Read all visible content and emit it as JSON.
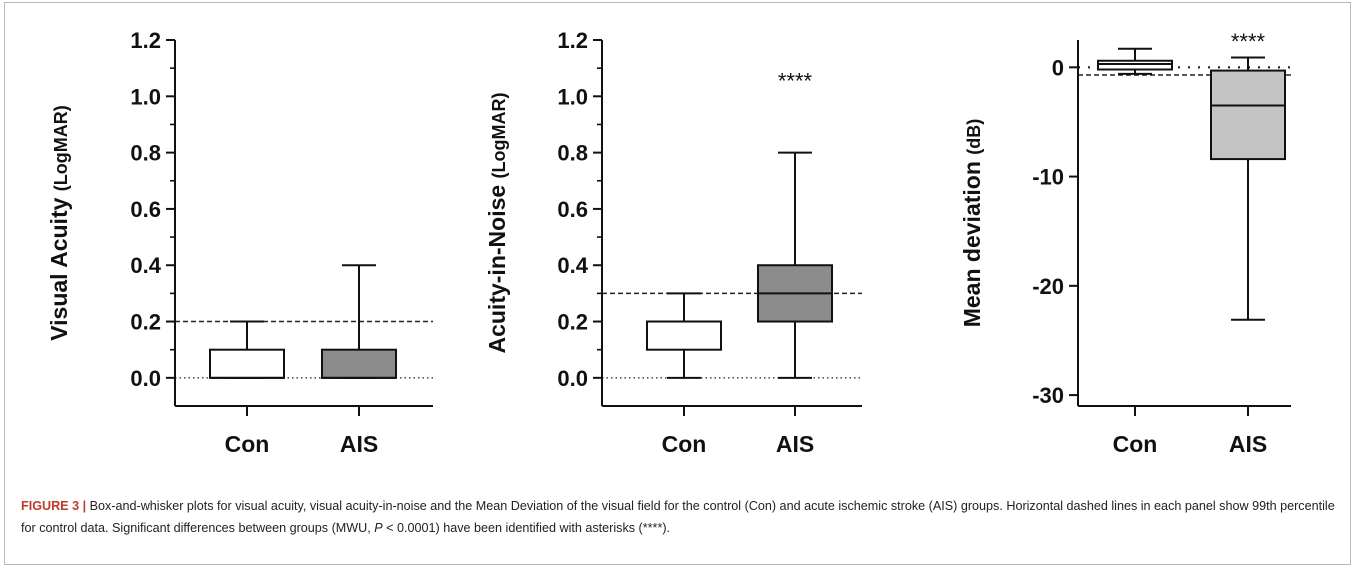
{
  "chart_data": [
    {
      "type": "box",
      "ylabel": "Visual Acuity",
      "ylabel_unit": "(LogMAR)",
      "ylim": [
        -0.1,
        1.2
      ],
      "yticks": [
        0.0,
        0.2,
        0.4,
        0.6,
        0.8,
        1.0,
        1.2
      ],
      "ytick_labels": [
        "0.0",
        "0.2",
        "0.4",
        "0.6",
        "0.8",
        "1.0",
        "1.2"
      ],
      "minor_ticks": true,
      "categories": [
        "Con",
        "AIS"
      ],
      "boxes": [
        {
          "name": "Con",
          "min": 0.0,
          "q1": 0.0,
          "median": 0.0,
          "q3": 0.1,
          "max": 0.2,
          "fill": "#ffffff"
        },
        {
          "name": "AIS",
          "min": 0.0,
          "q1": 0.0,
          "median": 0.0,
          "q3": 0.1,
          "max": 0.4,
          "fill": "#8c8c8c"
        }
      ],
      "reference_dashed": 0.2,
      "reference_dotted": 0.0,
      "significance": ""
    },
    {
      "type": "box",
      "ylabel": "Acuity-in-Noise",
      "ylabel_unit": "(LogMAR)",
      "ylim": [
        -0.1,
        1.2
      ],
      "yticks": [
        0.0,
        0.2,
        0.4,
        0.6,
        0.8,
        1.0,
        1.2
      ],
      "ytick_labels": [
        "0.0",
        "0.2",
        "0.4",
        "0.6",
        "0.8",
        "1.0",
        "1.2"
      ],
      "minor_ticks": true,
      "categories": [
        "Con",
        "AIS"
      ],
      "boxes": [
        {
          "name": "Con",
          "min": 0.0,
          "q1": 0.1,
          "median": 0.2,
          "q3": 0.2,
          "max": 0.3,
          "fill": "#ffffff"
        },
        {
          "name": "AIS",
          "min": 0.0,
          "q1": 0.2,
          "median": 0.3,
          "q3": 0.4,
          "max": 0.8,
          "fill": "#8c8c8c"
        }
      ],
      "reference_dashed": 0.3,
      "reference_dotted": 0.0,
      "significance": "****"
    },
    {
      "type": "box",
      "ylabel": "Mean deviation",
      "ylabel_unit": "(dB)",
      "ylim": [
        -31,
        2.5
      ],
      "yticks": [
        -30,
        -20,
        -10,
        0
      ],
      "ytick_labels": [
        "-30",
        "-20",
        "-10",
        "0"
      ],
      "minor_ticks": false,
      "categories": [
        "Con",
        "AIS"
      ],
      "boxes": [
        {
          "name": "Con",
          "min": -0.6,
          "q1": -0.2,
          "median": 0.3,
          "q3": 0.6,
          "max": 1.7,
          "fill": "#ffffff"
        },
        {
          "name": "AIS",
          "min": -23.1,
          "q1": -8.4,
          "median": -3.5,
          "q3": -0.3,
          "max": 0.9,
          "fill": "#c4c4c4"
        }
      ],
      "reference_dashed": -0.7,
      "reference_dotted": 0.0,
      "significance": "****"
    }
  ],
  "caption": {
    "label": "FIGURE 3 |",
    "text_before_p": "Box-and-whisker plots for visual acuity, visual acuity-in-noise and the Mean Deviation of the visual field for the control (Con) and acute ischemic stroke (AIS) groups. Horizontal dashed lines in each panel show 99th percentile for control data. Significant differences between groups (MWU, ",
    "p_symbol": "P",
    "text_after_p": " < 0.0001) have been identified with asterisks (****)."
  }
}
